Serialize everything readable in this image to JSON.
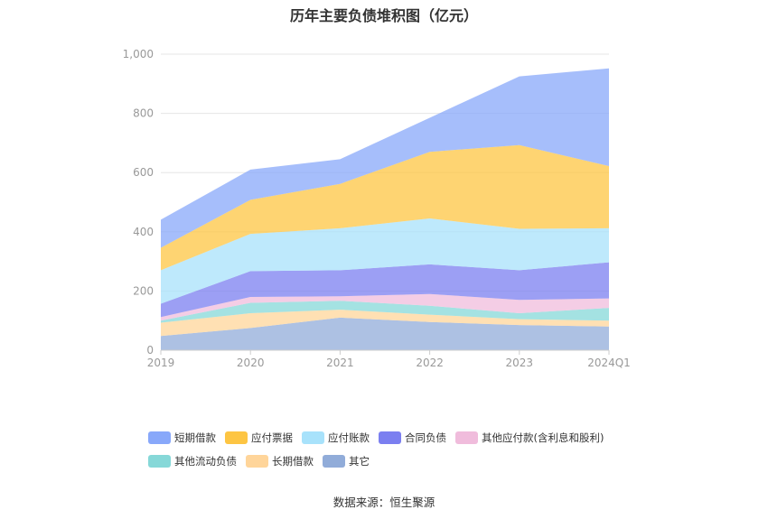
{
  "chart_data": {
    "type": "area",
    "stacked": true,
    "title": "历年主要负债堆积图（亿元）",
    "categories": [
      "2019",
      "2020",
      "2021",
      "2022",
      "2023",
      "2024Q1"
    ],
    "y_ticks": [
      "0",
      "200",
      "400",
      "600",
      "800",
      "1,000"
    ],
    "ylim": [
      0,
      1000
    ],
    "grid": true,
    "legend_position": "bottom",
    "series": [
      {
        "name": "其它",
        "color": "#91acd9",
        "values": [
          48,
          75,
          110,
          95,
          85,
          80
        ]
      },
      {
        "name": "长期借款",
        "color": "#ffd59a",
        "values": [
          45,
          50,
          27,
          25,
          20,
          20
        ]
      },
      {
        "name": "其他流动负债",
        "color": "#86d8d8",
        "values": [
          7,
          35,
          30,
          30,
          20,
          43
        ]
      },
      {
        "name": "其他应付款(含利息和股利)",
        "color": "#f0bcdc",
        "values": [
          12,
          20,
          15,
          40,
          45,
          32
        ]
      },
      {
        "name": "合同负债",
        "color": "#7b7ff0",
        "values": [
          45,
          87,
          88,
          100,
          100,
          122
        ]
      },
      {
        "name": "应付账款",
        "color": "#a8e2fb",
        "values": [
          113,
          126,
          142,
          155,
          140,
          115
        ]
      },
      {
        "name": "应付票据",
        "color": "#fdc543",
        "values": [
          76,
          115,
          150,
          225,
          283,
          210
        ]
      },
      {
        "name": "短期借款",
        "color": "#88a8fa",
        "values": [
          95,
          102,
          83,
          115,
          232,
          330
        ]
      }
    ]
  },
  "legend": {
    "rows": [
      [
        "短期借款",
        "应付票据",
        "应付账款",
        "合同负债",
        "其他应付款(含利息和股利)"
      ],
      [
        "其他流动负债",
        "长期借款",
        "其它"
      ]
    ],
    "colors": {
      "短期借款": "#88a8fa",
      "应付票据": "#fdc543",
      "应付账款": "#a8e2fb",
      "合同负债": "#7b7ff0",
      "其他应付款(含利息和股利)": "#f0bcdc",
      "其他流动负债": "#86d8d8",
      "长期借款": "#ffd59a",
      "其它": "#91acd9"
    }
  },
  "footer": {
    "source": "数据来源：恒生聚源"
  }
}
